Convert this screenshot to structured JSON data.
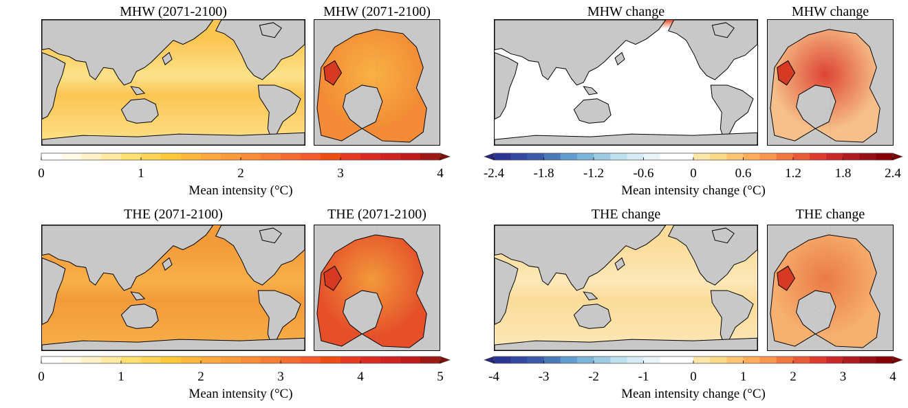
{
  "panels": [
    {
      "global_title": "MHW (2071-2100)",
      "polar_title": "MHW (2071-2100)",
      "ocean": "#fbc552",
      "ocean2": "#fde28a",
      "polar_ocean": "#f38a35",
      "polar_center": "#f9b245",
      "cbar": "seq",
      "ticks": [
        "0",
        "1",
        "2",
        "3",
        "4"
      ],
      "label": "Mean intensity (°C)"
    },
    {
      "global_title": "MHW change",
      "polar_title": "MHW change",
      "ocean": "#ffffff",
      "ocean2": "#ffffff",
      "polar_ocean": "#f7c08a",
      "polar_center": "#dd4432",
      "cbar": "div",
      "ticks": [
        "-2.4",
        "-1.8",
        "-1.2",
        "-0.6",
        "0",
        "0.6",
        "1.2",
        "1.8",
        "2.4"
      ],
      "label": "Mean intensity change (°C)"
    },
    {
      "global_title": "THE (2071-2100)",
      "polar_title": "THE (2071-2100)",
      "ocean": "#f39a3a",
      "ocean2": "#f7b04a",
      "polar_ocean": "#e5502a",
      "polar_center": "#f39a3a",
      "cbar": "seq",
      "ticks": [
        "0",
        "1",
        "2",
        "3",
        "4",
        "5"
      ],
      "label": "Mean intensity (°C)"
    },
    {
      "global_title": "THE change",
      "polar_title": "THE change",
      "ocean": "#fbdc9a",
      "ocean2": "#fde8b8",
      "polar_ocean": "#f6b070",
      "polar_center": "#ec7a45",
      "cbar": "div",
      "ticks": [
        "-4",
        "-3",
        "-2",
        "-1",
        "0",
        "1",
        "2",
        "3",
        "4"
      ],
      "label": "Mean intensity change (°C)"
    }
  ],
  "colormaps": {
    "seq": [
      "#ffffff",
      "#fffae8",
      "#fff2c8",
      "#ffeaa0",
      "#ffe070",
      "#fed455",
      "#fec83a",
      "#fdb83a",
      "#fca83a",
      "#fb9a38",
      "#fa8c35",
      "#f87c32",
      "#f66c30",
      "#f35a2c",
      "#f04e10",
      "#e83a20",
      "#dc2a25",
      "#d02222",
      "#c01a1a",
      "#a01812"
    ],
    "seq_arrow": "#7a1008",
    "div": [
      "#2d3592",
      "#3549a0",
      "#3b5aa8",
      "#4a7ab8",
      "#619ccc",
      "#7db5d8",
      "#9dcbe3",
      "#bde0ee",
      "#d6ebf4",
      "#e8f4fa",
      "#ffffff",
      "#ffffff",
      "#f9e6a8",
      "#fcd889",
      "#fdc570",
      "#fcad5a",
      "#f9954c",
      "#f37840",
      "#ea5a36",
      "#de3d2e",
      "#c92828",
      "#b01c20",
      "#9a0f16",
      "#870008"
    ],
    "div_arrow_left": "#26297a",
    "div_arrow_right": "#7a0006"
  }
}
